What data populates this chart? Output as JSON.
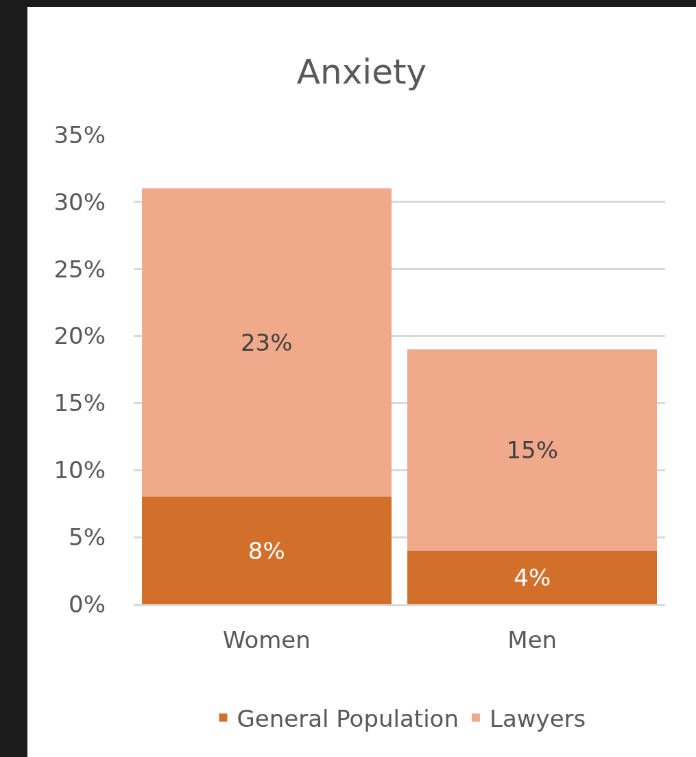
{
  "chart_data": {
    "type": "bar",
    "title": "Anxiety",
    "categories": [
      "Women",
      "Men"
    ],
    "stacked": true,
    "series": [
      {
        "name": "General Population",
        "color": "#d2702b",
        "values": [
          8,
          4
        ],
        "value_labels": [
          "8%",
          "4%"
        ]
      },
      {
        "name": "Lawyers",
        "color": "#f0a98a",
        "values": [
          23,
          15
        ],
        "value_labels": [
          "23%",
          "15%"
        ]
      }
    ],
    "ylim": [
      0,
      35
    ],
    "yticks": [
      {
        "value": 0,
        "label": "0%"
      },
      {
        "value": 5,
        "label": "5%"
      },
      {
        "value": 10,
        "label": "10%"
      },
      {
        "value": 15,
        "label": "15%"
      },
      {
        "value": 20,
        "label": "20%"
      },
      {
        "value": 25,
        "label": "25%"
      },
      {
        "value": 30,
        "label": "30%"
      },
      {
        "value": 35,
        "label": "35%"
      }
    ],
    "grid": "y",
    "legend": "bottom"
  }
}
